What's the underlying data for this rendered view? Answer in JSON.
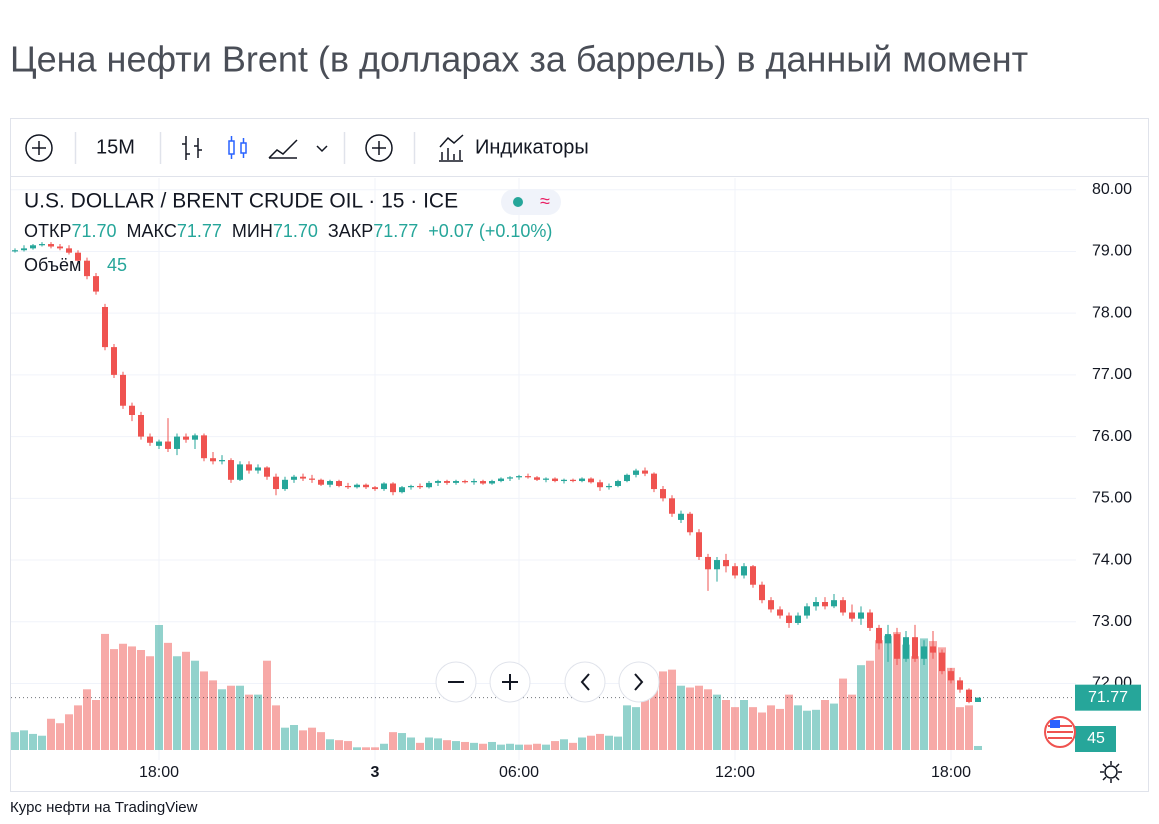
{
  "header": {
    "title": "Цена нефти Brent (в долларах за баррель) в данный момент"
  },
  "toolbar": {
    "interval": "15M",
    "indicators": "Индикаторы"
  },
  "chart_data": {
    "type": "candlestick",
    "symbol": "U.S. DOLLAR / BRENT CRUDE OIL · 15 · ICE",
    "legend_ohlc": {
      "names": [
        "ОТКР",
        "МАКС",
        "МИН",
        "ЗАКР"
      ],
      "values": [
        71.7,
        71.77,
        71.7,
        71.77
      ],
      "value_labels": [
        "71.70",
        "71.77",
        "71.70",
        "71.77"
      ]
    },
    "change_label": "+0.07 (+0.10%)",
    "volume_label": "Объём",
    "up_color": "#26a69a",
    "down_color": "#ef5350",
    "ylim": [
      70.76,
      80.19
    ],
    "yticks": [
      {
        "value": 72,
        "label": "72.00"
      },
      {
        "value": 73,
        "label": "73.00"
      },
      {
        "value": 74,
        "label": "74.00"
      },
      {
        "value": 75,
        "label": "75.00"
      },
      {
        "value": 76,
        "label": "76.00"
      },
      {
        "value": 77,
        "label": "77.00"
      },
      {
        "value": 78,
        "label": "78.00"
      },
      {
        "value": 79,
        "label": "79.00"
      },
      {
        "value": 80,
        "label": "80.00"
      }
    ],
    "volume_lim": [
      0,
      1400
    ],
    "xticks": [
      {
        "value": 16,
        "label": "18:00"
      },
      {
        "value": 40,
        "label": "3"
      },
      {
        "value": 56,
        "label": "06:00"
      },
      {
        "value": 80,
        "label": "12:00"
      },
      {
        "value": 104,
        "label": "18:00"
      }
    ],
    "candles": [
      [
        79.0,
        79.05,
        78.98,
        79.02
      ],
      [
        79.02,
        79.1,
        79.0,
        79.05
      ],
      [
        79.05,
        79.12,
        79.03,
        79.1
      ],
      [
        79.1,
        79.15,
        79.08,
        79.12
      ],
      [
        79.12,
        79.15,
        79.05,
        79.08
      ],
      [
        79.08,
        79.12,
        79.02,
        79.05
      ],
      [
        79.05,
        79.1,
        78.95,
        78.98
      ],
      [
        78.98,
        79.02,
        78.8,
        78.85
      ],
      [
        78.85,
        78.9,
        78.55,
        78.6
      ],
      [
        78.6,
        78.65,
        78.3,
        78.35
      ],
      [
        78.1,
        78.15,
        77.4,
        77.45
      ],
      [
        77.45,
        77.5,
        76.95,
        77.0
      ],
      [
        77.0,
        77.05,
        76.45,
        76.5
      ],
      [
        76.5,
        76.55,
        76.25,
        76.35
      ],
      [
        76.35,
        76.4,
        75.95,
        76.0
      ],
      [
        76.0,
        76.05,
        75.85,
        75.9
      ],
      [
        75.85,
        75.95,
        75.8,
        75.92
      ],
      [
        75.92,
        76.3,
        75.75,
        75.8
      ],
      [
        75.8,
        76.05,
        75.7,
        76.0
      ],
      [
        76.0,
        76.05,
        75.9,
        75.95
      ],
      [
        75.95,
        76.05,
        75.8,
        76.02
      ],
      [
        76.02,
        76.05,
        75.6,
        75.65
      ],
      [
        75.65,
        75.75,
        75.55,
        75.6
      ],
      [
        75.6,
        75.7,
        75.55,
        75.62
      ],
      [
        75.62,
        75.65,
        75.25,
        75.3
      ],
      [
        75.3,
        75.6,
        75.28,
        75.55
      ],
      [
        75.55,
        75.6,
        75.4,
        75.45
      ],
      [
        75.45,
        75.55,
        75.4,
        75.5
      ],
      [
        75.5,
        75.52,
        75.3,
        75.35
      ],
      [
        75.35,
        75.4,
        75.05,
        75.15
      ],
      [
        75.15,
        75.35,
        75.12,
        75.3
      ],
      [
        75.3,
        75.38,
        75.25,
        75.35
      ],
      [
        75.35,
        75.4,
        75.28,
        75.32
      ],
      [
        75.32,
        75.38,
        75.25,
        75.3
      ],
      [
        75.3,
        75.32,
        75.2,
        75.22
      ],
      [
        75.22,
        75.3,
        75.18,
        75.28
      ],
      [
        75.28,
        75.3,
        75.18,
        75.2
      ],
      [
        75.2,
        75.25,
        75.15,
        75.18
      ],
      [
        75.18,
        75.24,
        75.16,
        75.22
      ],
      [
        75.22,
        75.24,
        75.15,
        75.18
      ],
      [
        75.18,
        75.2,
        75.12,
        75.15
      ],
      [
        75.15,
        75.26,
        75.12,
        75.24
      ],
      [
        75.24,
        75.26,
        75.05,
        75.1
      ],
      [
        75.1,
        75.2,
        75.08,
        75.18
      ],
      [
        75.18,
        75.22,
        75.14,
        75.2
      ],
      [
        75.2,
        75.24,
        75.15,
        75.18
      ],
      [
        75.18,
        75.28,
        75.16,
        75.25
      ],
      [
        75.25,
        75.3,
        75.2,
        75.28
      ],
      [
        75.28,
        75.3,
        75.22,
        75.25
      ],
      [
        75.25,
        75.3,
        75.22,
        75.28
      ],
      [
        75.28,
        75.3,
        75.24,
        75.26
      ],
      [
        75.26,
        75.32,
        75.22,
        75.28
      ],
      [
        75.28,
        75.3,
        75.22,
        75.24
      ],
      [
        75.24,
        75.3,
        75.22,
        75.28
      ],
      [
        75.28,
        75.34,
        75.26,
        75.32
      ],
      [
        75.32,
        75.36,
        75.28,
        75.34
      ],
      [
        75.34,
        75.38,
        75.3,
        75.36
      ],
      [
        75.36,
        75.4,
        75.32,
        75.34
      ],
      [
        75.34,
        75.36,
        75.28,
        75.3
      ],
      [
        75.3,
        75.34,
        75.26,
        75.32
      ],
      [
        75.32,
        75.34,
        75.26,
        75.28
      ],
      [
        75.28,
        75.32,
        75.24,
        75.3
      ],
      [
        75.3,
        75.32,
        75.26,
        75.28
      ],
      [
        75.28,
        75.34,
        75.26,
        75.32
      ],
      [
        75.32,
        75.34,
        75.24,
        75.26
      ],
      [
        75.26,
        75.3,
        75.12,
        75.18
      ],
      [
        75.18,
        75.24,
        75.14,
        75.2
      ],
      [
        75.2,
        75.3,
        75.18,
        75.28
      ],
      [
        75.28,
        75.4,
        75.26,
        75.38
      ],
      [
        75.38,
        75.48,
        75.34,
        75.45
      ],
      [
        75.45,
        75.5,
        75.36,
        75.4
      ],
      [
        75.4,
        75.42,
        75.1,
        75.15
      ],
      [
        75.15,
        75.2,
        74.95,
        75.0
      ],
      [
        75.0,
        75.05,
        74.7,
        74.75
      ],
      [
        74.65,
        74.8,
        74.6,
        74.75
      ],
      [
        74.75,
        74.78,
        74.4,
        74.45
      ],
      [
        74.45,
        74.5,
        74.0,
        74.05
      ],
      [
        74.05,
        74.1,
        73.5,
        73.85
      ],
      [
        73.85,
        74.05,
        73.65,
        74.0
      ],
      [
        74.0,
        74.1,
        73.8,
        73.9
      ],
      [
        73.9,
        73.95,
        73.7,
        73.75
      ],
      [
        73.75,
        73.95,
        73.7,
        73.9
      ],
      [
        73.9,
        73.92,
        73.55,
        73.6
      ],
      [
        73.6,
        73.65,
        73.3,
        73.35
      ],
      [
        73.35,
        73.4,
        73.15,
        73.2
      ],
      [
        73.2,
        73.25,
        73.05,
        73.1
      ],
      [
        73.1,
        73.15,
        72.9,
        72.98
      ],
      [
        72.98,
        73.15,
        72.95,
        73.1
      ],
      [
        73.1,
        73.3,
        73.05,
        73.25
      ],
      [
        73.25,
        73.4,
        73.18,
        73.32
      ],
      [
        73.32,
        73.4,
        73.2,
        73.25
      ],
      [
        73.25,
        73.45,
        73.22,
        73.35
      ],
      [
        73.35,
        73.4,
        73.1,
        73.15
      ],
      [
        73.15,
        73.28,
        73.0,
        73.05
      ],
      [
        73.05,
        73.25,
        72.95,
        73.15
      ],
      [
        73.15,
        73.2,
        72.85,
        72.9
      ],
      [
        72.9,
        72.95,
        72.55,
        72.65
      ],
      [
        72.65,
        72.95,
        72.35,
        72.8
      ],
      [
        72.8,
        72.9,
        72.3,
        72.4
      ],
      [
        72.4,
        72.85,
        72.35,
        72.75
      ],
      [
        72.75,
        72.95,
        72.35,
        72.4
      ],
      [
        72.4,
        72.7,
        72.3,
        72.6
      ],
      [
        72.6,
        72.85,
        72.4,
        72.5
      ],
      [
        72.5,
        72.55,
        72.15,
        72.2
      ],
      [
        72.2,
        72.25,
        72.0,
        72.05
      ],
      [
        72.05,
        72.1,
        71.85,
        71.9
      ],
      [
        71.9,
        71.92,
        71.68,
        71.7
      ],
      [
        71.7,
        71.77,
        71.7,
        71.77
      ]
    ],
    "volumes": [
      200,
      220,
      180,
      160,
      350,
      300,
      400,
      500,
      680,
      560,
      1300,
      1130,
      1190,
      1160,
      1120,
      1050,
      1400,
      1200,
      1050,
      1100,
      1000,
      880,
      780,
      680,
      720,
      720,
      620,
      620,
      1000,
      500,
      250,
      280,
      220,
      250,
      200,
      120,
      110,
      100,
      30,
      30,
      30,
      70,
      200,
      190,
      140,
      80,
      140,
      130,
      110,
      100,
      90,
      80,
      70,
      90,
      60,
      70,
      60,
      60,
      70,
      60,
      100,
      120,
      80,
      140,
      160,
      180,
      160,
      150,
      500,
      480,
      560,
      740,
      880,
      900,
      720,
      700,
      720,
      680,
      620,
      560,
      480,
      560,
      480,
      420,
      500,
      460,
      620,
      500,
      440,
      450,
      560,
      520,
      800,
      620,
      950,
      1000,
      1230,
      1280,
      1320,
      1180,
      1050,
      1250,
      1220,
      1150,
      920,
      480,
      500,
      45
    ]
  },
  "footer": {
    "text": "Курс нефти на TradingView"
  }
}
